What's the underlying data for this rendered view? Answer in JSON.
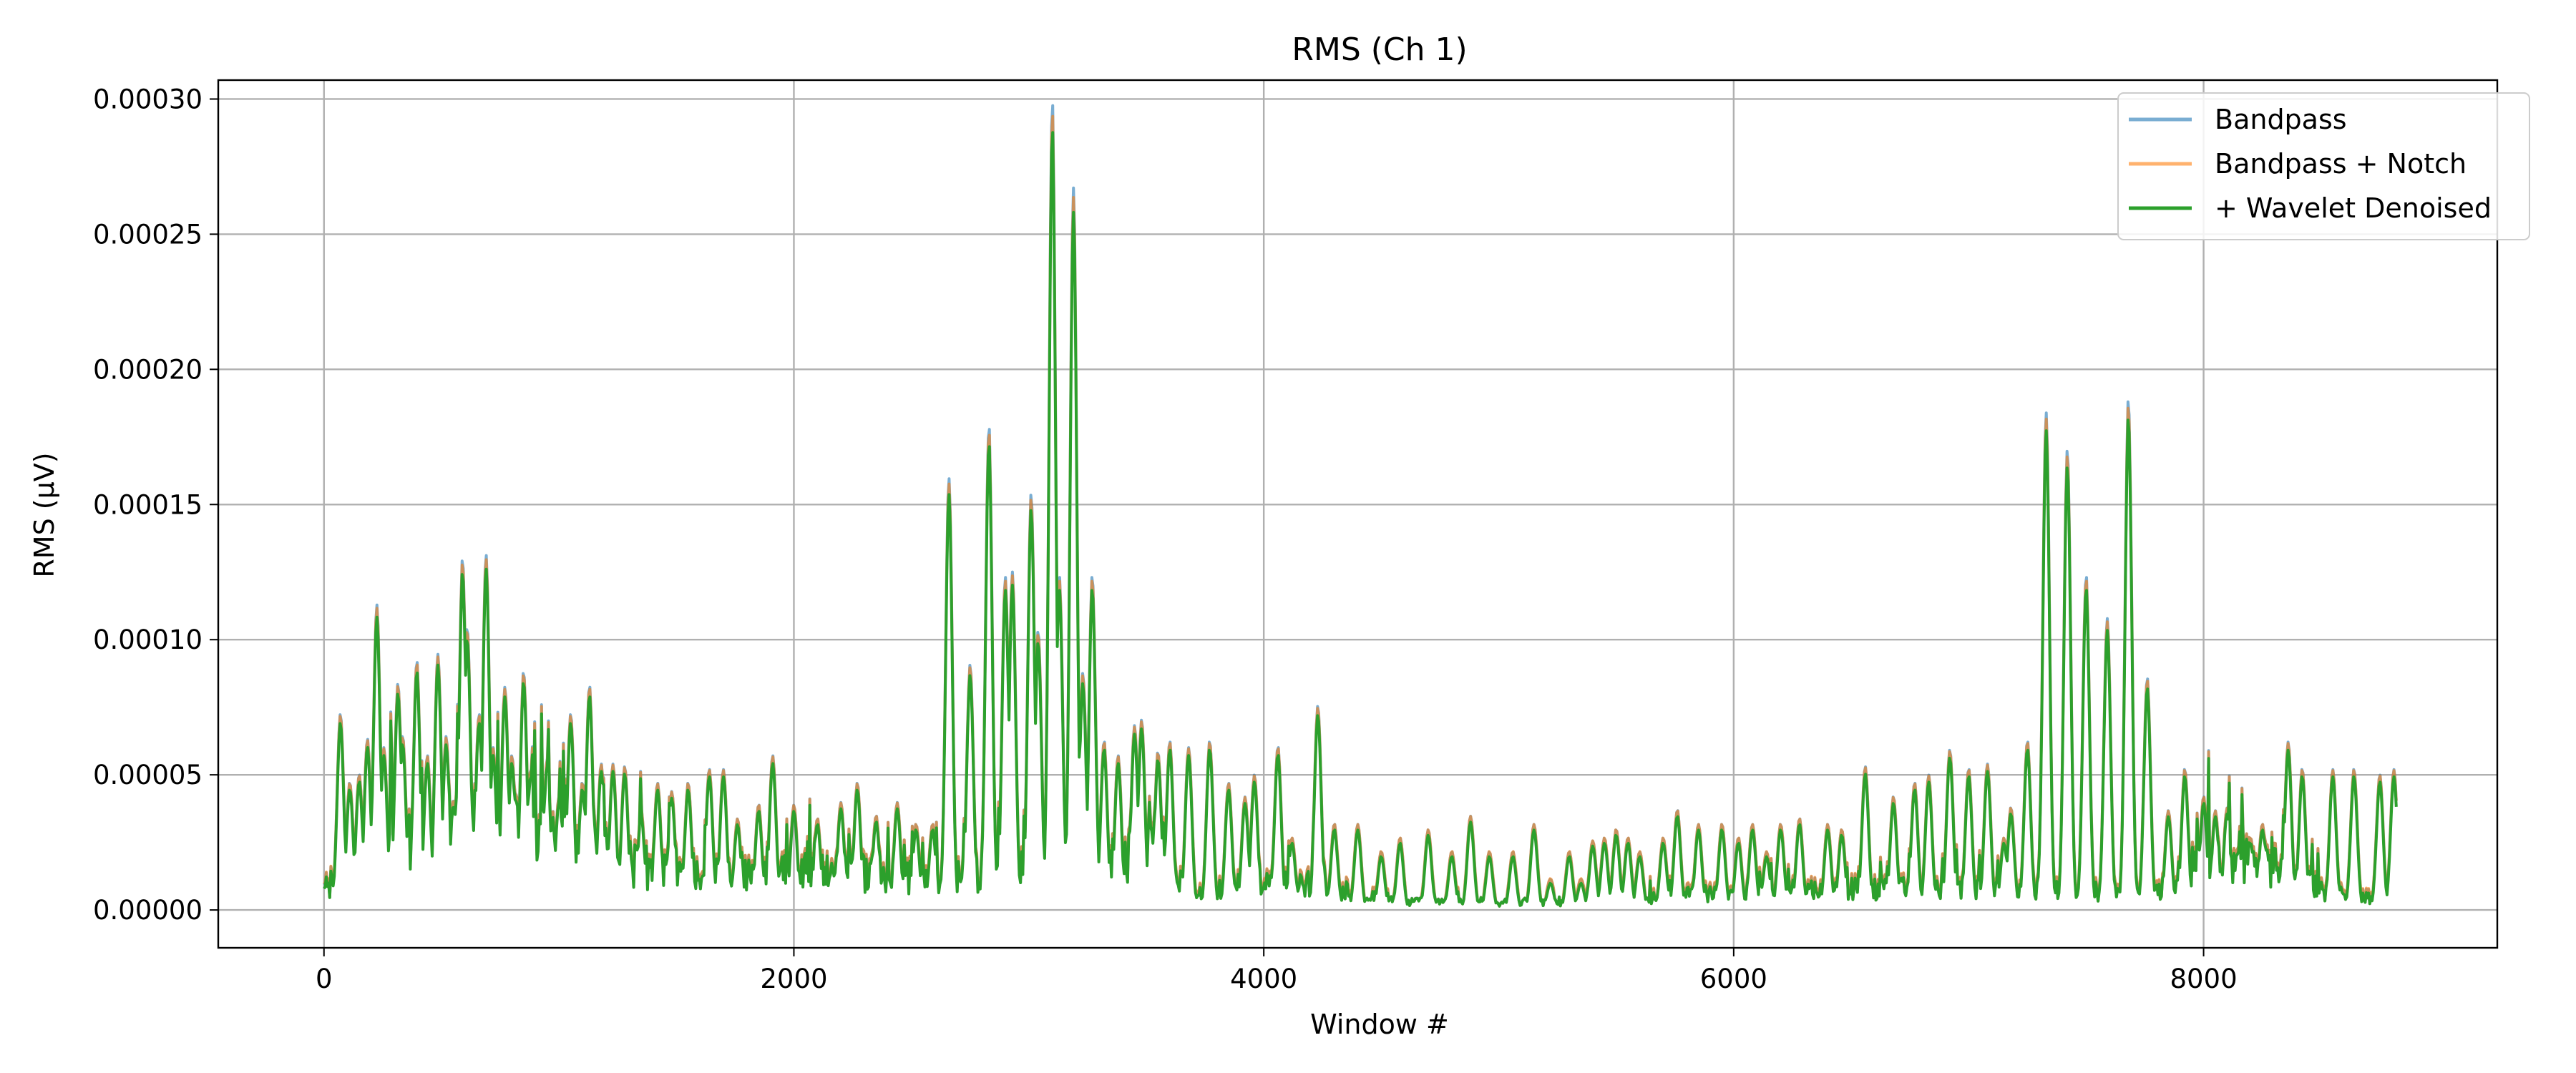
{
  "chart_data": {
    "type": "line",
    "title": "RMS (Ch 1)",
    "xlabel": "Window #",
    "ylabel": "RMS (µV)",
    "xlim": [
      -450,
      9250
    ],
    "ylim": [
      -1.4e-05,
      0.000307
    ],
    "xticks": [
      {
        "value": 0,
        "label": "0"
      },
      {
        "value": 2000,
        "label": "2000"
      },
      {
        "value": 4000,
        "label": "4000"
      },
      {
        "value": 6000,
        "label": "6000"
      },
      {
        "value": 8000,
        "label": "8000"
      }
    ],
    "yticks": [
      {
        "value": 0,
        "label": "0.00000"
      },
      {
        "value": 5e-05,
        "label": "0.00005"
      },
      {
        "value": 0.0001,
        "label": "0.00010"
      },
      {
        "value": 0.00015,
        "label": "0.00015"
      },
      {
        "value": 0.0002,
        "label": "0.00020"
      },
      {
        "value": 0.00025,
        "label": "0.00025"
      },
      {
        "value": 0.0003,
        "label": "0.00030"
      }
    ],
    "grid": true,
    "legend": "top-right",
    "x_range": [
      0,
      8820
    ],
    "baseline": [
      [
        0,
        8e-06
      ],
      [
        300,
        2.5e-05
      ],
      [
        700,
        3e-05
      ],
      [
        1100,
        2.2e-05
      ],
      [
        1400,
        1.6e-05
      ],
      [
        1800,
        1.3e-05
      ],
      [
        2300,
        1.4e-05
      ],
      [
        2700,
        1.2e-05
      ],
      [
        3300,
        1.8e-05
      ],
      [
        3550,
        2.8e-05
      ],
      [
        3700,
        3e-06
      ],
      [
        3900,
        9e-06
      ],
      [
        4200,
        1e-05
      ],
      [
        4600,
        3e-06
      ],
      [
        5200,
        3e-06
      ],
      [
        5800,
        6e-06
      ],
      [
        6500,
        8e-06
      ],
      [
        7300,
        8e-06
      ],
      [
        7800,
        6e-06
      ],
      [
        8000,
        2e-05
      ],
      [
        8300,
        1.8e-05
      ],
      [
        8500,
        7e-06
      ],
      [
        8820,
        3e-06
      ]
    ],
    "peaks": [
      [
        70,
        7e-05
      ],
      [
        110,
        4.5e-05
      ],
      [
        150,
        4.8e-05
      ],
      [
        185,
        6.1e-05
      ],
      [
        225,
        0.00011
      ],
      [
        255,
        5.8e-05
      ],
      [
        315,
        8.1e-05
      ],
      [
        335,
        6.2e-05
      ],
      [
        395,
        8.9e-05
      ],
      [
        440,
        5.5e-05
      ],
      [
        485,
        9.2e-05
      ],
      [
        520,
        6.2e-05
      ],
      [
        590,
        0.000126
      ],
      [
        610,
        0.000101
      ],
      [
        660,
        7e-05
      ],
      [
        690,
        0.000128
      ],
      [
        720,
        5.8e-05
      ],
      [
        770,
        8e-05
      ],
      [
        800,
        5.5e-05
      ],
      [
        850,
        8.5e-05
      ],
      [
        880,
        5e-05
      ],
      [
        950,
        5.4e-05
      ],
      [
        1000,
        4e-05
      ],
      [
        1050,
        7e-05
      ],
      [
        1100,
        4.5e-05
      ],
      [
        1130,
        8e-05
      ],
      [
        1180,
        5.2e-05
      ],
      [
        1230,
        5.2e-05
      ],
      [
        1280,
        5.1e-05
      ],
      [
        1350,
        3.5e-05
      ],
      [
        1420,
        4.5e-05
      ],
      [
        1480,
        4.2e-05
      ],
      [
        1550,
        4.5e-05
      ],
      [
        1640,
        5e-05
      ],
      [
        1700,
        5e-05
      ],
      [
        1760,
        3.2e-05
      ],
      [
        1850,
        3.7e-05
      ],
      [
        1910,
        5.5e-05
      ],
      [
        2000,
        3.7e-05
      ],
      [
        2100,
        3.2e-05
      ],
      [
        2200,
        3.8e-05
      ],
      [
        2270,
        4.5e-05
      ],
      [
        2350,
        3.3e-05
      ],
      [
        2440,
        3.8e-05
      ],
      [
        2520,
        3e-05
      ],
      [
        2590,
        3e-05
      ],
      [
        2660,
        0.000156
      ],
      [
        2750,
        8.8e-05
      ],
      [
        2830,
        0.000174
      ],
      [
        2900,
        0.00012
      ],
      [
        2930,
        0.000122
      ],
      [
        3010,
        0.00015
      ],
      [
        3040,
        0.0001
      ],
      [
        3100,
        0.000292
      ],
      [
        3130,
        0.00012
      ],
      [
        3190,
        0.000262
      ],
      [
        3230,
        8.5e-05
      ],
      [
        3270,
        0.00012
      ],
      [
        3320,
        6e-05
      ],
      [
        3380,
        5.5e-05
      ],
      [
        3450,
        6.6e-05
      ],
      [
        3480,
        6.8e-05
      ],
      [
        3550,
        5.6e-05
      ],
      [
        3600,
        6e-05
      ],
      [
        3680,
        5.8e-05
      ],
      [
        3770,
        6e-05
      ],
      [
        3850,
        4.5e-05
      ],
      [
        3920,
        4e-05
      ],
      [
        3960,
        4.8e-05
      ],
      [
        4060,
        5.8e-05
      ],
      [
        4120,
        2.5e-05
      ],
      [
        4230,
        7.3e-05
      ],
      [
        4300,
        3e-05
      ],
      [
        4400,
        3e-05
      ],
      [
        4500,
        2e-05
      ],
      [
        4580,
        2.5e-05
      ],
      [
        4700,
        2.8e-05
      ],
      [
        4800,
        2e-05
      ],
      [
        4880,
        3.3e-05
      ],
      [
        4960,
        2e-05
      ],
      [
        5060,
        2e-05
      ],
      [
        5150,
        3e-05
      ],
      [
        5220,
        1e-05
      ],
      [
        5300,
        2e-05
      ],
      [
        5350,
        1e-05
      ],
      [
        5400,
        2.4e-05
      ],
      [
        5450,
        2.5e-05
      ],
      [
        5500,
        2.8e-05
      ],
      [
        5550,
        2.5e-05
      ],
      [
        5600,
        2e-05
      ],
      [
        5700,
        2.5e-05
      ],
      [
        5760,
        3.5e-05
      ],
      [
        5850,
        3e-05
      ],
      [
        5950,
        3e-05
      ],
      [
        6020,
        2.5e-05
      ],
      [
        6080,
        3e-05
      ],
      [
        6140,
        2e-05
      ],
      [
        6200,
        3e-05
      ],
      [
        6280,
        3.2e-05
      ],
      [
        6400,
        3e-05
      ],
      [
        6460,
        2.8e-05
      ],
      [
        6560,
        5.1e-05
      ],
      [
        6680,
        4e-05
      ],
      [
        6770,
        4.5e-05
      ],
      [
        6830,
        4.8e-05
      ],
      [
        6920,
        5.7e-05
      ],
      [
        7000,
        5e-05
      ],
      [
        7080,
        5.2e-05
      ],
      [
        7150,
        2.5e-05
      ],
      [
        7180,
        3.6e-05
      ],
      [
        7250,
        6e-05
      ],
      [
        7330,
        0.00018
      ],
      [
        7420,
        0.000166
      ],
      [
        7500,
        0.00012
      ],
      [
        7590,
        0.000105
      ],
      [
        7680,
        0.000184
      ],
      [
        7760,
        8.3e-05
      ],
      [
        7850,
        3.5e-05
      ],
      [
        7920,
        5e-05
      ],
      [
        8000,
        4e-05
      ],
      [
        8050,
        3.5e-05
      ],
      [
        8100,
        3.6e-05
      ],
      [
        8200,
        2.5e-05
      ],
      [
        8250,
        3e-05
      ],
      [
        8360,
        6e-05
      ],
      [
        8420,
        5e-05
      ],
      [
        8550,
        5e-05
      ],
      [
        8640,
        5e-05
      ],
      [
        8750,
        4.8e-05
      ],
      [
        8810,
        5e-05
      ]
    ],
    "series": [
      {
        "name": "Bandpass",
        "color": "#1f77b4",
        "opacity": 0.6,
        "scale": 1.015,
        "offset": 1.2e-06
      },
      {
        "name": "Bandpass + Notch",
        "color": "#ff7f0e",
        "opacity": 0.6,
        "scale": 1.0,
        "offset": 1.6e-06
      },
      {
        "name": "+ Wavelet Denoised",
        "color": "#2ca02c",
        "opacity": 1.0,
        "scale": 0.985,
        "offset": 0.0
      }
    ]
  }
}
